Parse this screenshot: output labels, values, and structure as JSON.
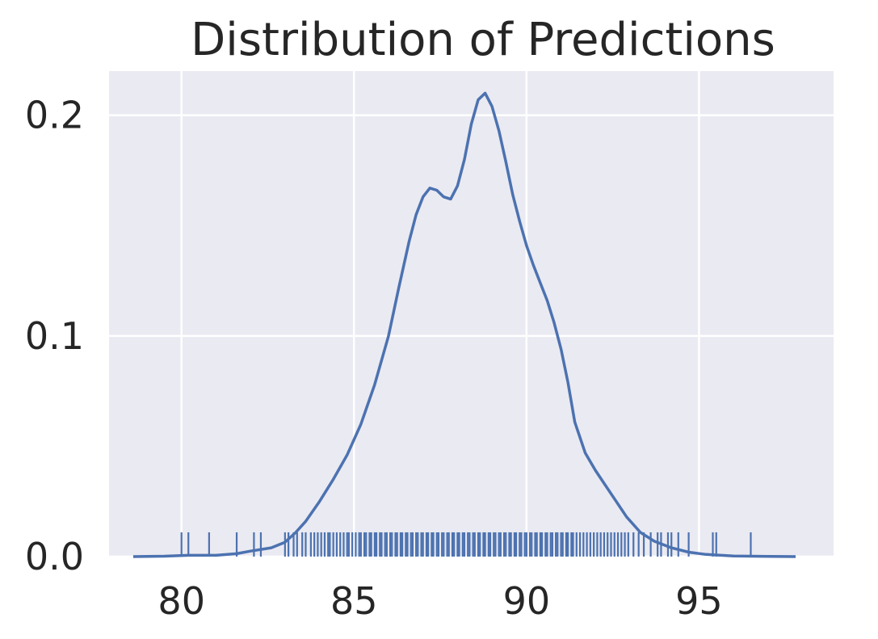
{
  "chart_data": {
    "type": "line",
    "title": "Distribution of Predictions",
    "xlabel": "",
    "ylabel": "",
    "xlim": [
      77.9,
      98.9
    ],
    "ylim": [
      0,
      0.22
    ],
    "x_ticks": [
      {
        "value": 80,
        "label": "80"
      },
      {
        "value": 85,
        "label": "85"
      },
      {
        "value": 90,
        "label": "90"
      },
      {
        "value": 95,
        "label": "95"
      }
    ],
    "y_ticks": [
      {
        "value": 0.0,
        "label": "0.0"
      },
      {
        "value": 0.1,
        "label": "0.1"
      },
      {
        "value": 0.2,
        "label": "0.2"
      }
    ],
    "grid": true,
    "background_color": "#eaeaf2",
    "line_color": "#4c72b0",
    "series": [
      {
        "kind": "kde",
        "x": [
          78.6,
          79.5,
          80.2,
          81.0,
          81.6,
          82.0,
          82.6,
          83.0,
          83.3,
          83.6,
          84.0,
          84.4,
          84.8,
          85.2,
          85.6,
          86.0,
          86.3,
          86.6,
          86.8,
          87.0,
          87.2,
          87.4,
          87.6,
          87.8,
          88.0,
          88.2,
          88.4,
          88.6,
          88.8,
          89.0,
          89.2,
          89.4,
          89.6,
          89.8,
          90.0,
          90.2,
          90.4,
          90.6,
          90.8,
          91.0,
          91.2,
          91.4,
          91.7,
          92.0,
          92.3,
          92.6,
          92.9,
          93.3,
          93.7,
          94.2,
          94.7,
          95.2,
          96.0,
          97.0,
          97.8
        ],
        "y": [
          0.0,
          0.0002,
          0.0006,
          0.0006,
          0.0013,
          0.0025,
          0.004,
          0.0065,
          0.0108,
          0.016,
          0.025,
          0.035,
          0.046,
          0.06,
          0.078,
          0.1,
          0.122,
          0.143,
          0.155,
          0.163,
          0.167,
          0.166,
          0.163,
          0.162,
          0.168,
          0.18,
          0.196,
          0.207,
          0.21,
          0.204,
          0.193,
          0.179,
          0.164,
          0.152,
          0.141,
          0.132,
          0.124,
          0.116,
          0.106,
          0.094,
          0.079,
          0.061,
          0.047,
          0.039,
          0.032,
          0.025,
          0.018,
          0.011,
          0.007,
          0.004,
          0.002,
          0.001,
          0.0003,
          0.0001,
          0.0
        ]
      },
      {
        "kind": "rug",
        "height": 0.011,
        "values": [
          80.0,
          80.2,
          80.8,
          81.6,
          82.1,
          82.3,
          83.0,
          83.1,
          83.25,
          83.35,
          83.5,
          83.6,
          83.75,
          83.85,
          83.95,
          84.05,
          84.15,
          84.25,
          84.3,
          84.4,
          84.5,
          84.6,
          84.7,
          84.8,
          84.85,
          84.95,
          85.05,
          85.15,
          85.2,
          85.3,
          85.35,
          85.45,
          85.5,
          85.6,
          85.65,
          85.75,
          85.8,
          85.9,
          85.95,
          86.05,
          86.1,
          86.2,
          86.25,
          86.35,
          86.4,
          86.5,
          86.55,
          86.65,
          86.7,
          86.8,
          86.85,
          86.95,
          87.0,
          87.1,
          87.15,
          87.25,
          87.3,
          87.4,
          87.45,
          87.55,
          87.6,
          87.7,
          87.75,
          87.85,
          87.9,
          88.0,
          88.05,
          88.15,
          88.2,
          88.3,
          88.35,
          88.45,
          88.5,
          88.6,
          88.65,
          88.75,
          88.8,
          88.9,
          88.95,
          89.05,
          89.1,
          89.2,
          89.25,
          89.35,
          89.4,
          89.5,
          89.55,
          89.65,
          89.7,
          89.8,
          89.85,
          89.95,
          90.0,
          90.1,
          90.15,
          90.25,
          90.3,
          90.4,
          90.45,
          90.55,
          90.6,
          90.7,
          90.75,
          90.85,
          90.9,
          91.0,
          91.05,
          91.15,
          91.2,
          91.3,
          91.35,
          91.45,
          91.55,
          91.65,
          91.75,
          91.85,
          91.95,
          92.05,
          92.15,
          92.25,
          92.35,
          92.45,
          92.55,
          92.65,
          92.75,
          92.85,
          92.95,
          93.1,
          93.25,
          93.4,
          93.6,
          93.8,
          93.9,
          94.1,
          94.2,
          94.4,
          94.7,
          95.4,
          95.5,
          96.5
        ]
      }
    ]
  }
}
